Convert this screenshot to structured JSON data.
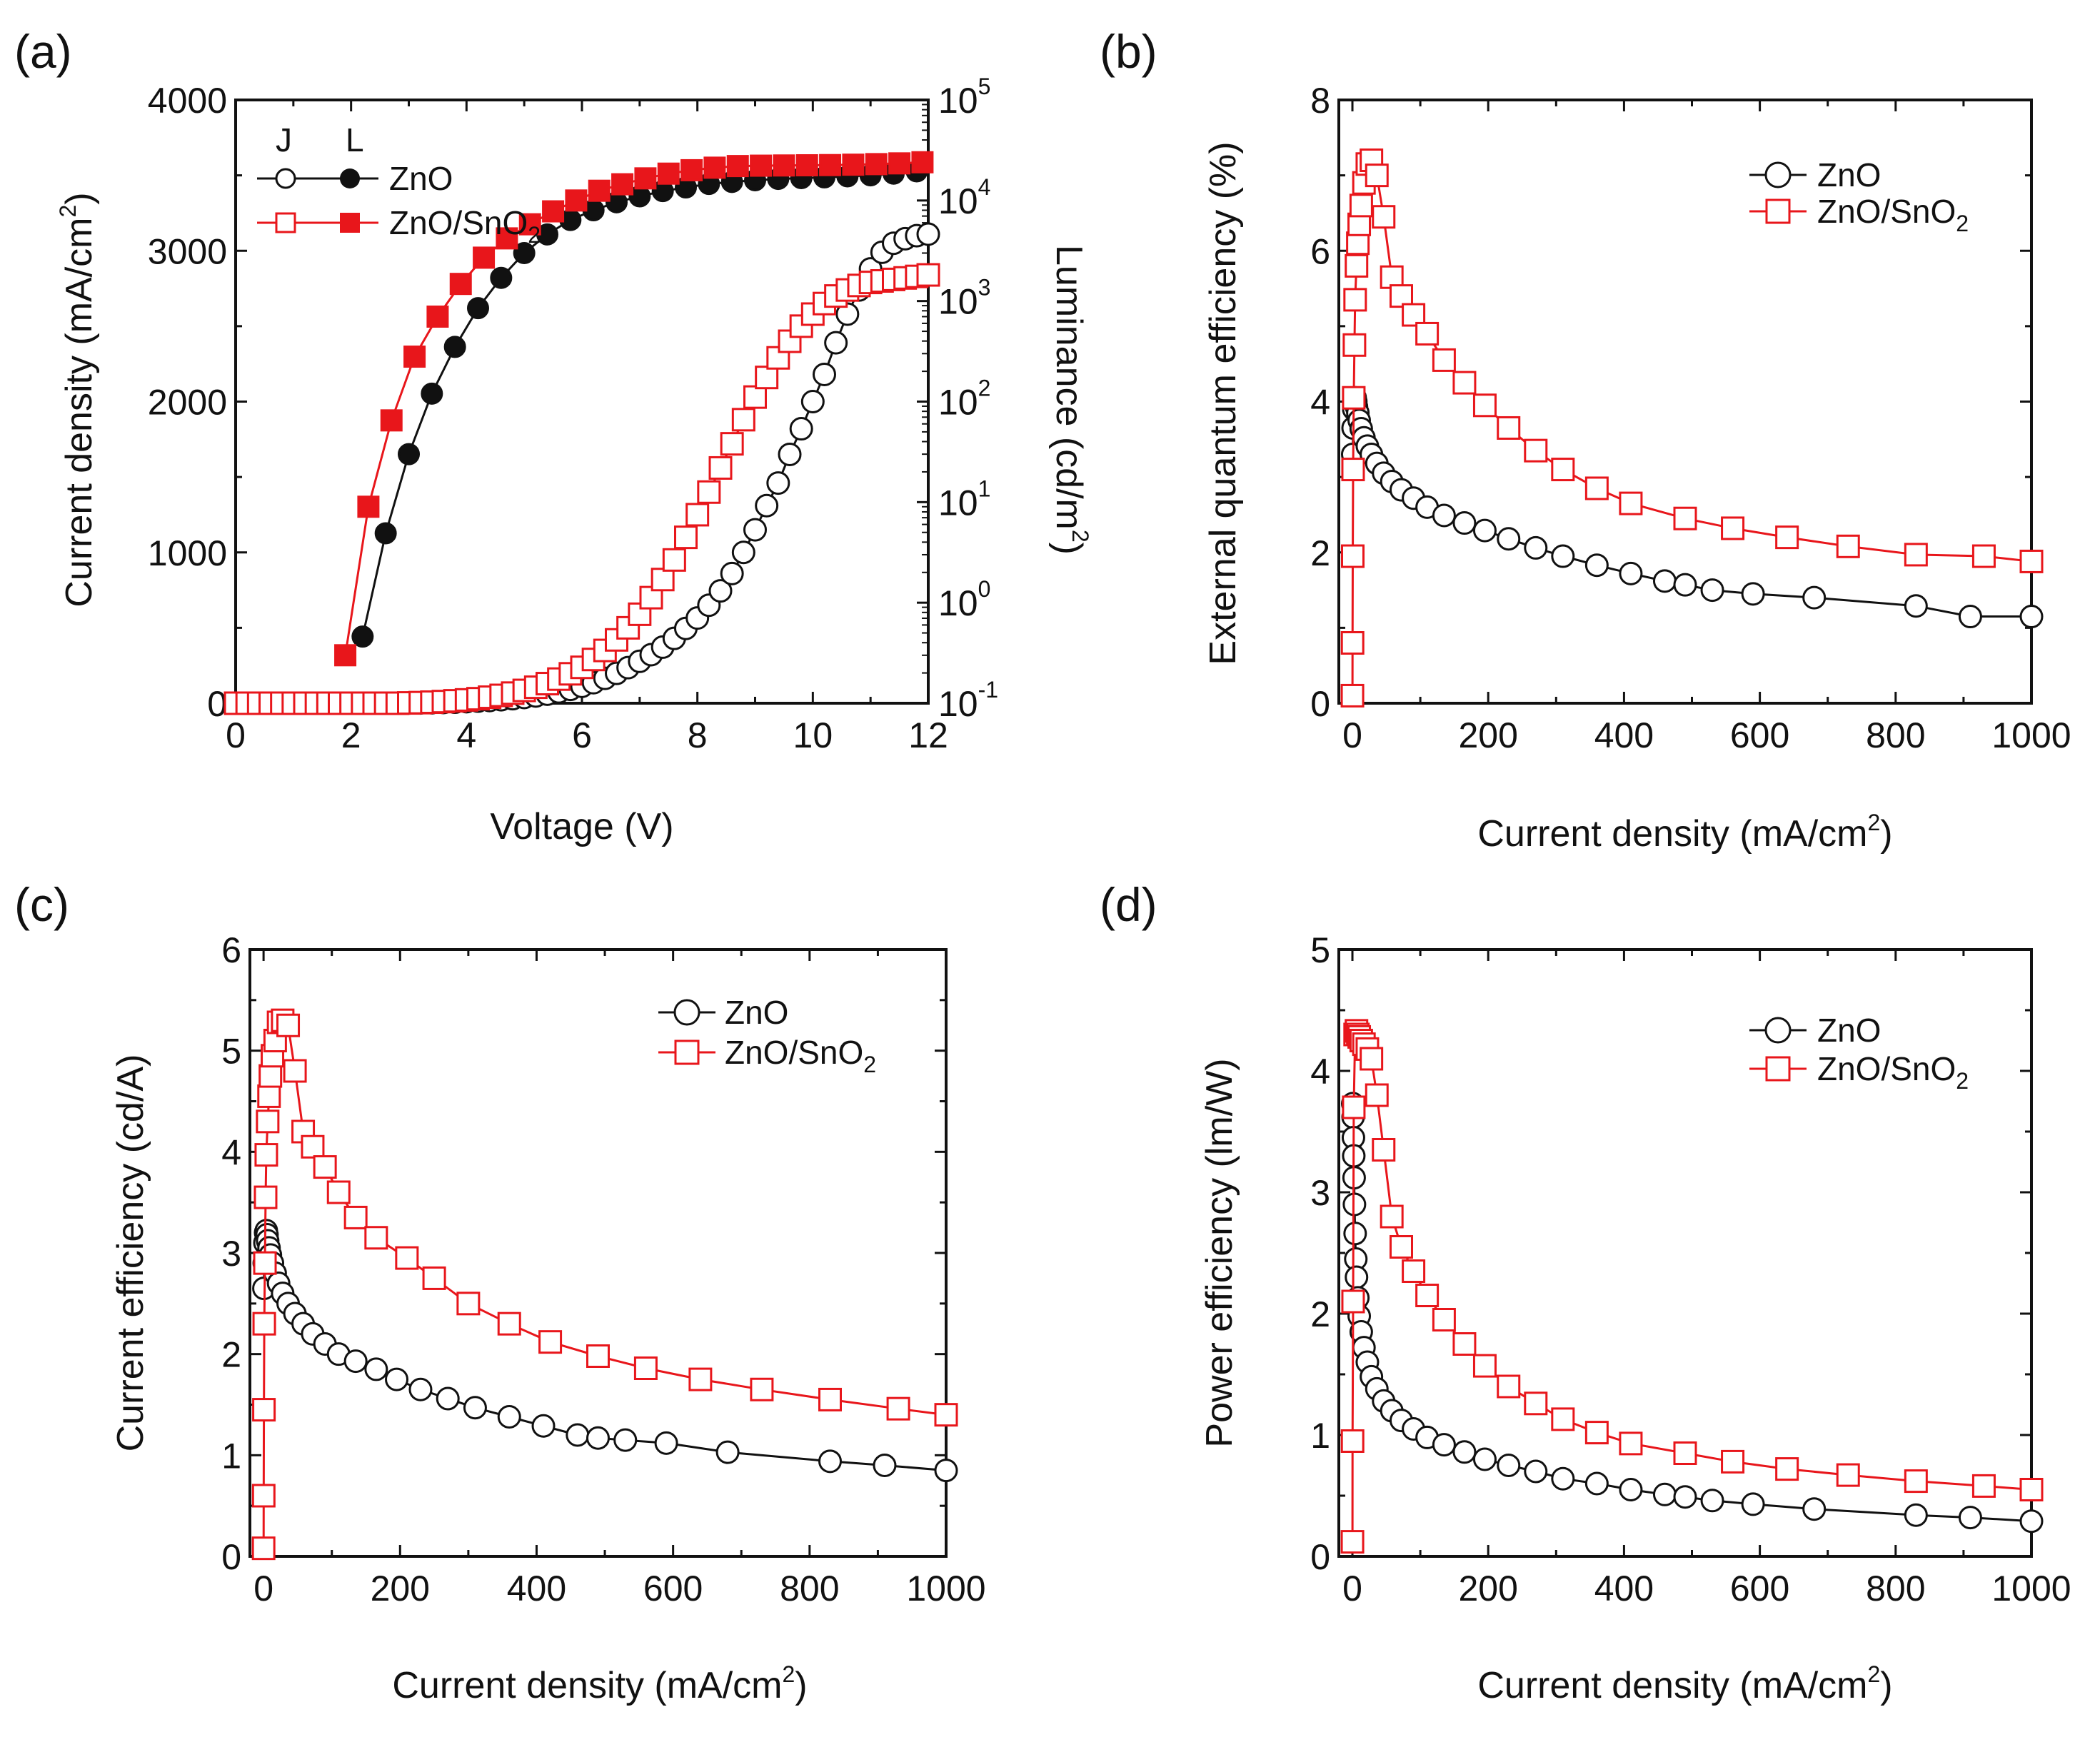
{
  "colors": {
    "znO": "#111111",
    "snO2": "#e8161b",
    "axis": "#111111"
  },
  "panels": [
    {
      "id": "a",
      "letter": "(a)",
      "xlabel": "Voltage (V)",
      "ylabel": "Current density (mA/cm",
      "ylabel_sup": "2",
      "ylabel_end": ")",
      "y2label": "Luminance (cd/m",
      "y2label_sup": "2",
      "y2label_end": ")",
      "legend_j": "J",
      "legend_l": "L",
      "legend_zno": "ZnO",
      "legend_sno_main": "ZnO/SnO",
      "legend_sno_sub": "2"
    },
    {
      "id": "b",
      "letter": "(b)",
      "xlabel": "Current density (mA/cm",
      "xlabel_sup": "2",
      "xlabel_end": ")",
      "ylabel": "External quantum efficiency (%)",
      "legend_zno": "ZnO",
      "legend_sno_main": "ZnO/SnO",
      "legend_sno_sub": "2"
    },
    {
      "id": "c",
      "letter": "(c)",
      "xlabel": "Current density (mA/cm",
      "xlabel_sup": "2",
      "xlabel_end": ")",
      "ylabel": "Current efficiency (cd/A)",
      "legend_zno": "ZnO",
      "legend_sno_main": "ZnO/SnO",
      "legend_sno_sub": "2"
    },
    {
      "id": "d",
      "letter": "(d)",
      "xlabel": "Current density (mA/cm",
      "xlabel_sup": "2",
      "xlabel_end": ")",
      "ylabel": "Power efficiency (lm/W)",
      "legend_zno": "ZnO",
      "legend_sno_main": "ZnO/SnO",
      "legend_sno_sub": "2"
    }
  ],
  "chart_data": [
    {
      "panel": "a",
      "type": "scatter",
      "x_ticks": [
        "0",
        "2",
        "4",
        "6",
        "8",
        "10",
        "12"
      ],
      "xlim": [
        0,
        12
      ],
      "y_ticks": [
        "0",
        "1000",
        "2000",
        "3000",
        "4000"
      ],
      "ylim": [
        0,
        4000
      ],
      "y2_ticks": [
        {
          "base": "10",
          "exp": "5"
        },
        {
          "base": "10",
          "exp": "4"
        },
        {
          "base": "10",
          "exp": "3"
        },
        {
          "base": "10",
          "exp": "2"
        },
        {
          "base": "10",
          "exp": "1"
        },
        {
          "base": "10",
          "exp": "0"
        },
        {
          "base": "10",
          "exp": "-1"
        }
      ],
      "y2_log_range": [
        -1,
        5
      ],
      "series": [
        {
          "name": "ZnO J",
          "axis": "left",
          "marker": "circle-open",
          "color": "#111111",
          "x": [
            0,
            0.2,
            0.4,
            0.6,
            0.8,
            1.0,
            1.2,
            1.4,
            1.6,
            1.8,
            2.0,
            2.2,
            2.4,
            2.6,
            2.8,
            3.0,
            3.2,
            3.4,
            3.6,
            3.8,
            4.0,
            4.2,
            4.4,
            4.6,
            4.8,
            5.0,
            5.2,
            5.4,
            5.6,
            5.8,
            6.0,
            6.2,
            6.4,
            6.6,
            6.8,
            7.0,
            7.2,
            7.4,
            7.6,
            7.8,
            8.0,
            8.2,
            8.4,
            8.6,
            8.8,
            9.0,
            9.2,
            9.4,
            9.6,
            9.8,
            10.0,
            10.2,
            10.4,
            10.6,
            10.8,
            11.0,
            11.2,
            11.4,
            11.6,
            11.8,
            12.0
          ],
          "values": [
            0,
            0,
            0,
            0,
            0,
            0,
            0,
            0,
            0,
            0,
            0,
            0,
            0,
            0,
            0,
            1,
            2,
            3,
            5,
            7,
            10,
            14,
            18,
            23,
            30,
            38,
            48,
            60,
            75,
            92,
            112,
            136,
            165,
            198,
            236,
            278,
            322,
            372,
            430,
            496,
            565,
            650,
            745,
            860,
            1000,
            1150,
            1310,
            1460,
            1650,
            1820,
            2000,
            2180,
            2390,
            2580,
            2740,
            2880,
            2990,
            3050,
            3080,
            3100,
            3110
          ]
        },
        {
          "name": "ZnO/SnO2 J",
          "axis": "left",
          "marker": "square-open",
          "color": "#e8161b",
          "x": [
            0,
            0.2,
            0.4,
            0.6,
            0.8,
            1.0,
            1.2,
            1.4,
            1.6,
            1.8,
            2.0,
            2.2,
            2.4,
            2.6,
            2.8,
            3.0,
            3.2,
            3.4,
            3.6,
            3.8,
            4.0,
            4.2,
            4.4,
            4.6,
            4.8,
            5.0,
            5.2,
            5.4,
            5.6,
            5.8,
            6.0,
            6.2,
            6.4,
            6.6,
            6.8,
            7.0,
            7.2,
            7.4,
            7.6,
            7.8,
            8.0,
            8.2,
            8.4,
            8.6,
            8.8,
            9.0,
            9.2,
            9.4,
            9.6,
            9.8,
            10.0,
            10.2,
            10.4,
            10.6,
            10.8,
            11.0,
            11.2,
            11.4,
            11.6,
            11.8,
            12.0
          ],
          "values": [
            0,
            0,
            0,
            0,
            0,
            0,
            0,
            0,
            0,
            0,
            0,
            0,
            0,
            0,
            0,
            2,
            4,
            7,
            11,
            16,
            22,
            30,
            40,
            52,
            67,
            85,
            106,
            130,
            160,
            195,
            238,
            290,
            350,
            420,
            500,
            590,
            700,
            820,
            950,
            1100,
            1250,
            1400,
            1560,
            1720,
            1880,
            2030,
            2160,
            2290,
            2400,
            2500,
            2580,
            2650,
            2700,
            2740,
            2770,
            2790,
            2800,
            2810,
            2820,
            2830,
            2840
          ]
        },
        {
          "name": "ZnO L",
          "axis": "right",
          "marker": "circle-filled",
          "color": "#111111",
          "x": [
            2.2,
            2.6,
            3.0,
            3.4,
            3.8,
            4.2,
            4.6,
            5.0,
            5.4,
            5.8,
            6.2,
            6.6,
            7.0,
            7.4,
            7.8,
            8.2,
            8.6,
            9.0,
            9.4,
            9.8,
            10.2,
            10.6,
            11.0,
            11.4,
            11.8
          ],
          "values": [
            0.46,
            4.9,
            30,
            120,
            350,
            850,
            1700,
            3000,
            4600,
            6400,
            8000,
            9600,
            11000,
            12400,
            13500,
            14600,
            15300,
            15900,
            16400,
            16700,
            17000,
            17400,
            17800,
            18500,
            19500
          ]
        },
        {
          "name": "ZnO/SnO2 L",
          "axis": "right",
          "marker": "square-filled",
          "color": "#e8161b",
          "x": [
            1.9,
            2.3,
            2.7,
            3.1,
            3.5,
            3.9,
            4.3,
            4.7,
            5.1,
            5.5,
            5.9,
            6.3,
            6.7,
            7.1,
            7.5,
            7.9,
            8.3,
            8.7,
            9.1,
            9.5,
            9.9,
            10.3,
            10.7,
            11.1,
            11.5,
            11.9
          ],
          "values": [
            0.3,
            9,
            65,
            280,
            700,
            1480,
            2700,
            4200,
            5800,
            7800,
            10000,
            12500,
            14500,
            16600,
            18500,
            20000,
            21200,
            22000,
            22200,
            22300,
            22400,
            22500,
            22700,
            23000,
            23400,
            24000
          ]
        }
      ]
    },
    {
      "panel": "b",
      "type": "scatter",
      "x_ticks": [
        "0",
        "200",
        "400",
        "600",
        "800",
        "1000"
      ],
      "xlim": [
        -20,
        1000
      ],
      "y_ticks": [
        "0",
        "2",
        "4",
        "6",
        "8"
      ],
      "ylim": [
        0,
        8
      ],
      "series": [
        {
          "name": "ZnO",
          "marker": "circle-open",
          "color": "#111111",
          "x": [
            0.5,
            1,
            2,
            3,
            4,
            5,
            6,
            8,
            10,
            13,
            17,
            22,
            28,
            36,
            46,
            58,
            72,
            90,
            110,
            135,
            165,
            195,
            230,
            270,
            310,
            360,
            410,
            460,
            490,
            530,
            590,
            680,
            830,
            910,
            1000
          ],
          "values": [
            3.3,
            3.65,
            3.9,
            4.02,
            4.05,
            4.0,
            3.93,
            3.85,
            3.75,
            3.64,
            3.52,
            3.41,
            3.3,
            3.18,
            3.05,
            2.94,
            2.83,
            2.72,
            2.6,
            2.49,
            2.39,
            2.29,
            2.18,
            2.06,
            1.95,
            1.83,
            1.72,
            1.62,
            1.57,
            1.5,
            1.45,
            1.4,
            1.29,
            1.15,
            1.15
          ]
        },
        {
          "name": "ZnO/SnO2",
          "marker": "square-open",
          "color": "#e8161b",
          "x": [
            0.05,
            0.2,
            0.5,
            1,
            2,
            3,
            4,
            6,
            8,
            10,
            13,
            17,
            22,
            28,
            36,
            46,
            58,
            72,
            90,
            110,
            135,
            165,
            195,
            230,
            270,
            310,
            360,
            410,
            490,
            560,
            640,
            730,
            830,
            930,
            1000
          ],
          "values": [
            0.1,
            0.8,
            1.95,
            3.1,
            4.05,
            4.75,
            5.35,
            5.8,
            6.1,
            6.35,
            6.6,
            6.9,
            7.15,
            7.2,
            7.0,
            6.45,
            5.65,
            5.4,
            5.15,
            4.9,
            4.55,
            4.25,
            3.95,
            3.65,
            3.35,
            3.1,
            2.85,
            2.65,
            2.45,
            2.32,
            2.2,
            2.08,
            1.97,
            1.95,
            1.88
          ]
        }
      ]
    },
    {
      "panel": "c",
      "type": "scatter",
      "x_ticks": [
        "0",
        "200",
        "400",
        "600",
        "800",
        "1000"
      ],
      "xlim": [
        -20,
        1000
      ],
      "y_ticks": [
        "0",
        "1",
        "2",
        "3",
        "4",
        "5",
        "6"
      ],
      "ylim": [
        0,
        6
      ],
      "series": [
        {
          "name": "ZnO",
          "marker": "circle-open",
          "color": "#111111",
          "x": [
            0.5,
            1,
            2,
            3,
            4,
            5,
            6,
            8,
            10,
            13,
            17,
            22,
            28,
            36,
            46,
            58,
            72,
            90,
            110,
            135,
            165,
            195,
            230,
            270,
            310,
            360,
            410,
            460,
            490,
            530,
            590,
            680,
            830,
            910,
            1000
          ],
          "values": [
            2.65,
            2.9,
            3.1,
            3.2,
            3.22,
            3.18,
            3.12,
            3.05,
            2.98,
            2.9,
            2.8,
            2.7,
            2.6,
            2.5,
            2.4,
            2.3,
            2.2,
            2.1,
            2.0,
            1.93,
            1.85,
            1.75,
            1.65,
            1.56,
            1.47,
            1.38,
            1.29,
            1.2,
            1.17,
            1.15,
            1.12,
            1.03,
            0.94,
            0.9,
            0.85
          ]
        },
        {
          "name": "ZnO/SnO2",
          "marker": "square-open",
          "color": "#e8161b",
          "x": [
            0.05,
            0.2,
            0.5,
            1,
            2,
            3,
            4,
            6,
            8,
            10,
            13,
            17,
            22,
            28,
            36,
            46,
            58,
            72,
            90,
            110,
            135,
            165,
            210,
            250,
            300,
            360,
            420,
            490,
            560,
            640,
            730,
            830,
            930,
            1000
          ],
          "values": [
            0.08,
            0.6,
            1.45,
            2.3,
            2.9,
            3.55,
            3.97,
            4.3,
            4.55,
            4.75,
            4.95,
            5.1,
            5.28,
            5.3,
            5.25,
            4.8,
            4.2,
            4.05,
            3.85,
            3.6,
            3.35,
            3.15,
            2.95,
            2.75,
            2.5,
            2.3,
            2.12,
            1.98,
            1.86,
            1.75,
            1.65,
            1.55,
            1.46,
            1.4
          ]
        }
      ]
    },
    {
      "panel": "d",
      "type": "scatter",
      "x_ticks": [
        "0",
        "200",
        "400",
        "600",
        "800",
        "1000"
      ],
      "xlim": [
        -20,
        1000
      ],
      "y_ticks": [
        "0",
        "1",
        "2",
        "3",
        "4",
        "5"
      ],
      "ylim": [
        0,
        5
      ],
      "series": [
        {
          "name": "ZnO",
          "marker": "circle-open",
          "color": "#111111",
          "x": [
            0.5,
            1,
            1.5,
            2,
            2.5,
            3,
            4,
            5,
            6,
            8,
            10,
            13,
            17,
            22,
            28,
            36,
            46,
            58,
            72,
            90,
            110,
            135,
            165,
            195,
            230,
            270,
            310,
            360,
            410,
            460,
            490,
            530,
            590,
            680,
            830,
            910,
            1000
          ],
          "values": [
            3.73,
            3.62,
            3.45,
            3.3,
            3.12,
            2.9,
            2.66,
            2.45,
            2.3,
            2.13,
            1.98,
            1.85,
            1.72,
            1.6,
            1.48,
            1.38,
            1.28,
            1.2,
            1.12,
            1.05,
            0.98,
            0.92,
            0.86,
            0.8,
            0.75,
            0.7,
            0.64,
            0.6,
            0.55,
            0.51,
            0.49,
            0.46,
            0.43,
            0.39,
            0.34,
            0.32,
            0.29
          ]
        },
        {
          "name": "ZnO/SnO2",
          "marker": "square-open",
          "color": "#e8161b",
          "x": [
            0.05,
            0.2,
            1,
            2,
            4,
            6,
            8,
            10,
            13,
            17,
            22,
            28,
            36,
            46,
            58,
            72,
            90,
            110,
            135,
            165,
            195,
            230,
            270,
            310,
            360,
            410,
            490,
            560,
            640,
            730,
            830,
            930,
            1000
          ],
          "values": [
            0.12,
            0.95,
            2.1,
            3.7,
            4.3,
            4.33,
            4.3,
            4.28,
            4.25,
            4.22,
            4.18,
            4.1,
            3.8,
            3.35,
            2.8,
            2.55,
            2.35,
            2.15,
            1.95,
            1.75,
            1.57,
            1.4,
            1.26,
            1.13,
            1.02,
            0.93,
            0.85,
            0.78,
            0.72,
            0.67,
            0.62,
            0.58,
            0.55
          ]
        }
      ]
    }
  ]
}
